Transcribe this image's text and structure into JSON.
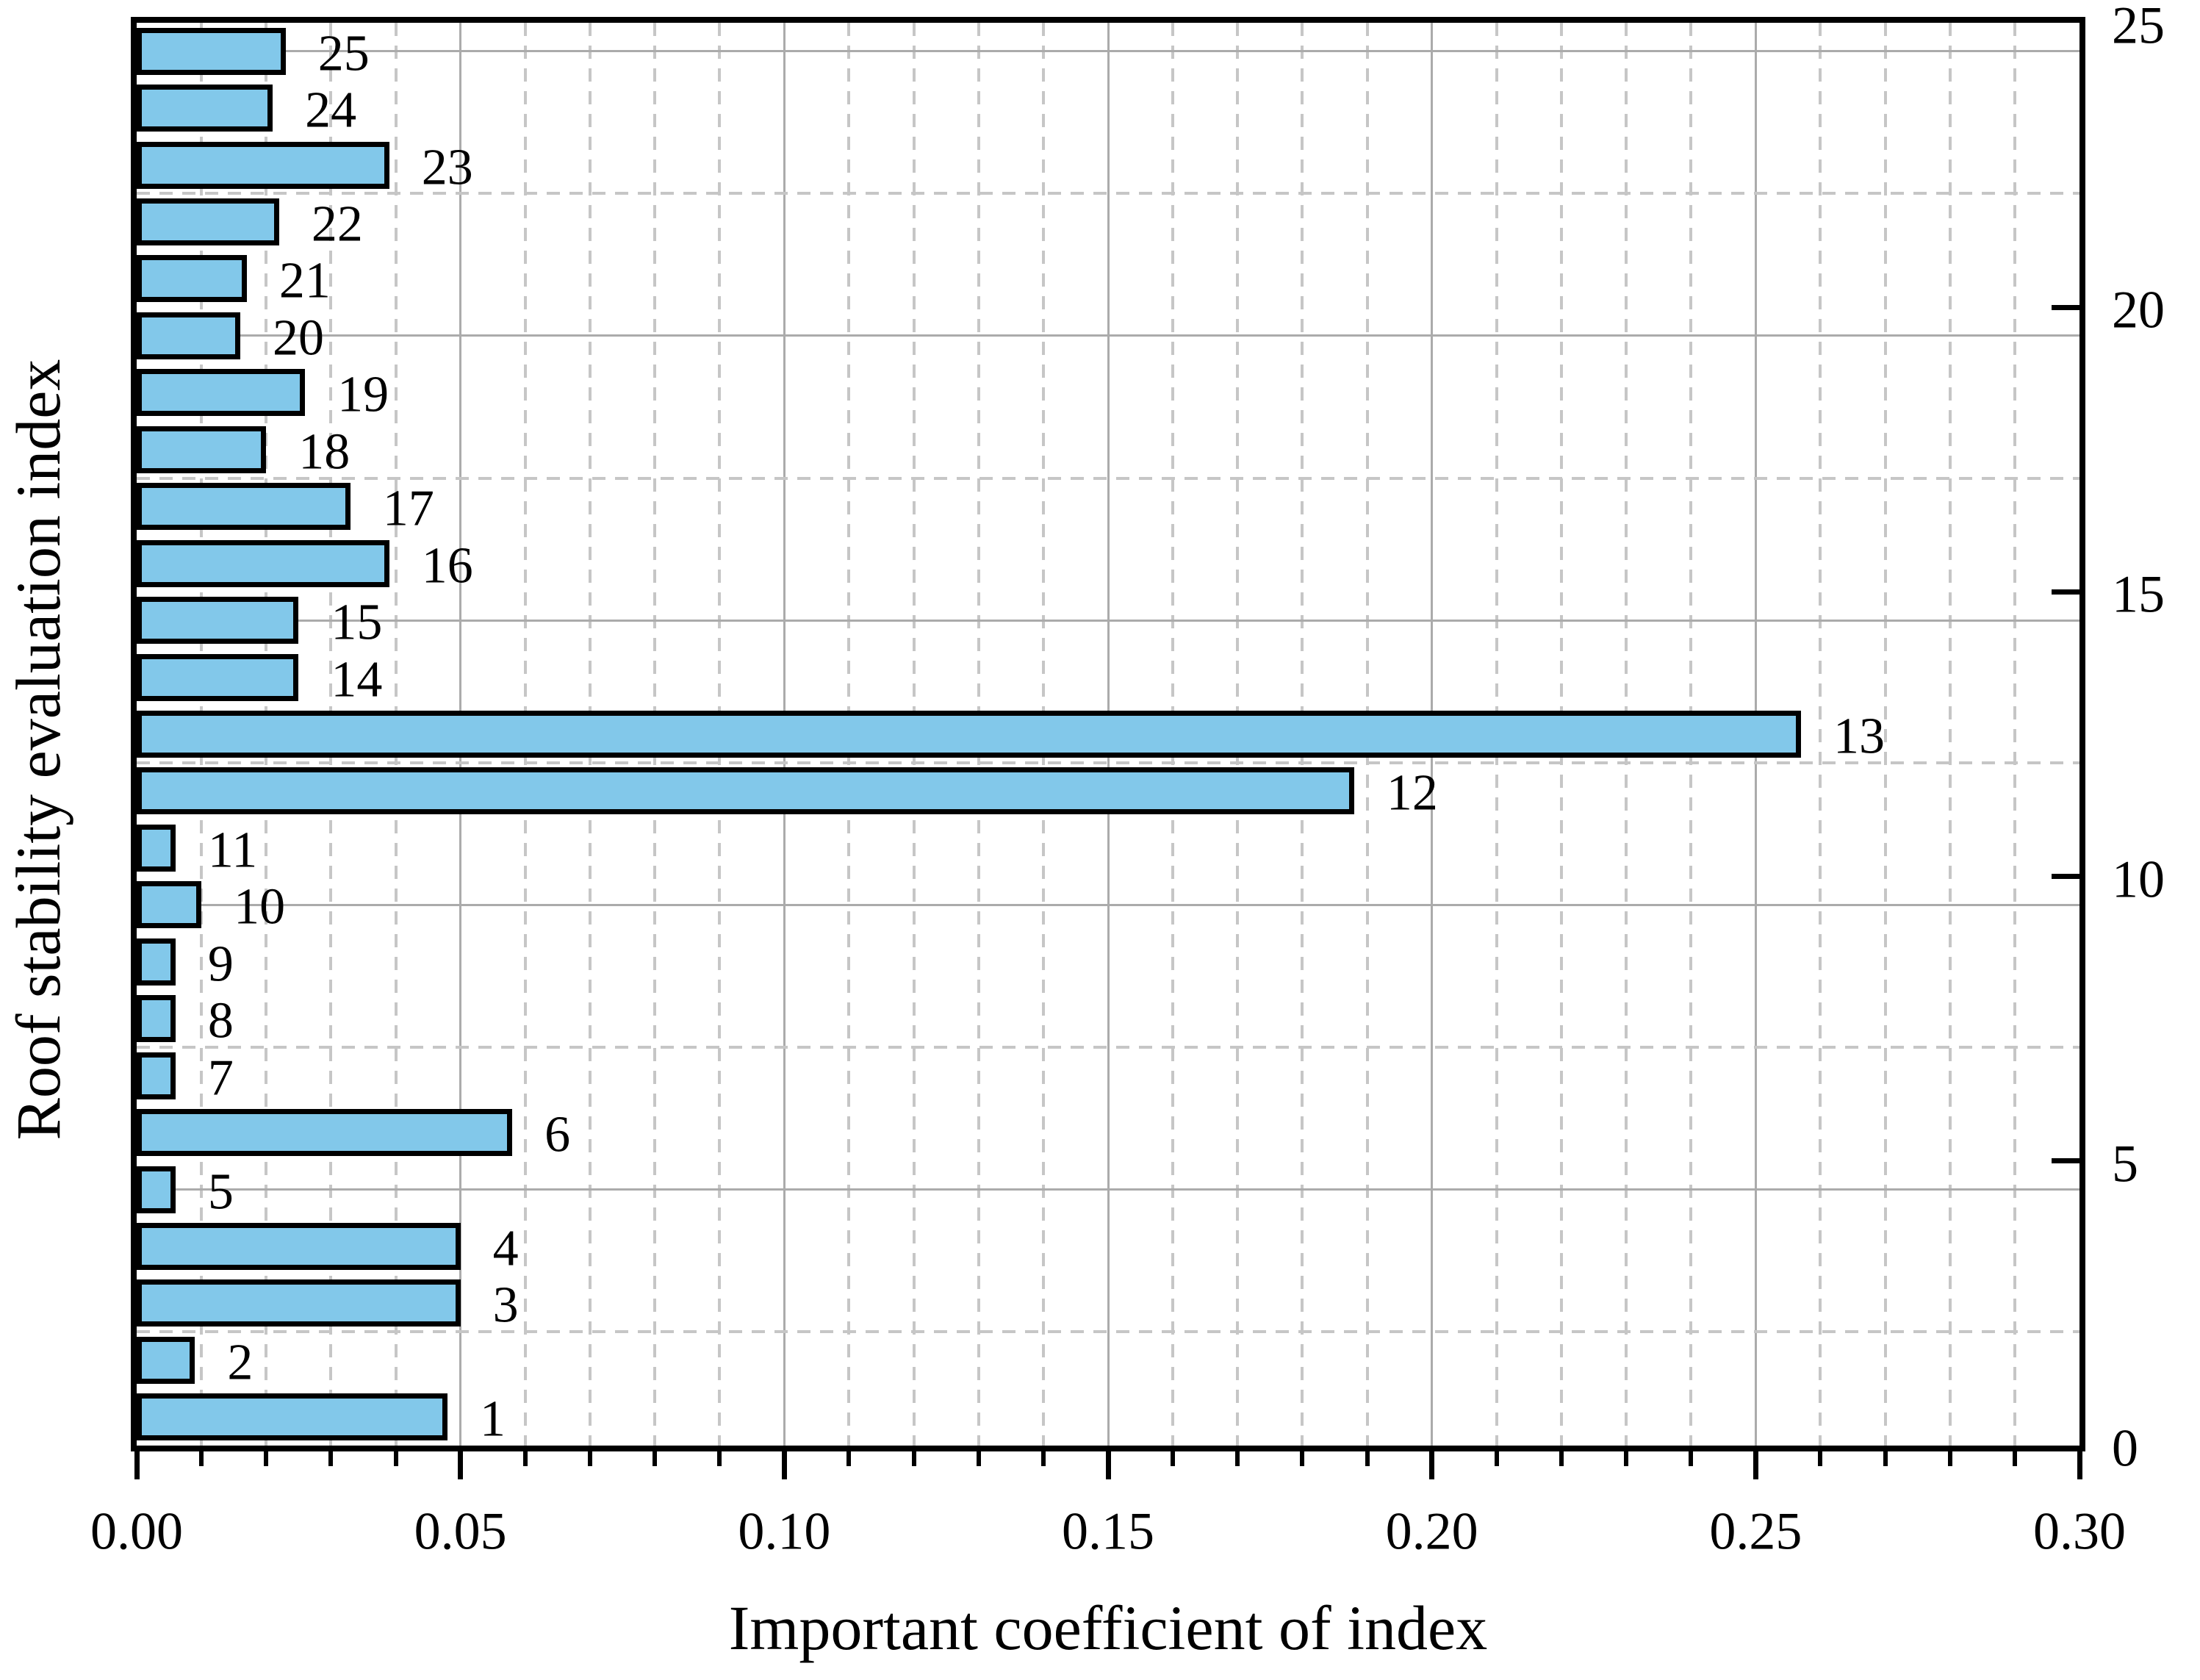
{
  "chart_data": {
    "type": "bar",
    "orientation": "horizontal",
    "title": "",
    "xlabel": "Important coefficient of index",
    "ylabel": "Roof stability evaluation index",
    "categories": [
      1,
      2,
      3,
      4,
      5,
      6,
      7,
      8,
      9,
      10,
      11,
      12,
      13,
      14,
      15,
      16,
      17,
      18,
      19,
      20,
      21,
      22,
      23,
      24,
      25
    ],
    "values": [
      0.048,
      0.009,
      0.05,
      0.05,
      0.006,
      0.058,
      0.006,
      0.006,
      0.006,
      0.01,
      0.006,
      0.188,
      0.257,
      0.025,
      0.025,
      0.039,
      0.033,
      0.02,
      0.026,
      0.016,
      0.017,
      0.022,
      0.039,
      0.021,
      0.023
    ],
    "xlim": [
      0,
      0.3
    ],
    "ylim": [
      0,
      25
    ],
    "x_major_tick_step": 0.05,
    "x_minor_tick_step": 0.01,
    "x_tick_labels": [
      "0.00",
      "0.05",
      "0.10",
      "0.15",
      "0.20",
      "0.25",
      "0.30"
    ],
    "y_right_tick_values": [
      0,
      5,
      10,
      15,
      20,
      25
    ],
    "y_right_tick_labels": [
      "0",
      "5",
      "10",
      "15",
      "20",
      "25"
    ],
    "grid": {
      "vertical_solid_at": [
        0.05,
        0.1,
        0.15,
        0.2,
        0.25
      ],
      "vertical_dashed_step": 0.01,
      "horizontal_solid_at": [
        4.5,
        9.5,
        14.5,
        19.5,
        24.5
      ],
      "horizontal_dashed_at": [
        2,
        7,
        12,
        17,
        22
      ],
      "legend": "none"
    },
    "colors": {
      "bar_fill": "#82C8EA",
      "bar_border": "#000000",
      "axis": "#000000",
      "grid_solid": "#ababab",
      "grid_dashed": "#c6c6c6",
      "text": "#000000",
      "background": "#ffffff"
    }
  }
}
